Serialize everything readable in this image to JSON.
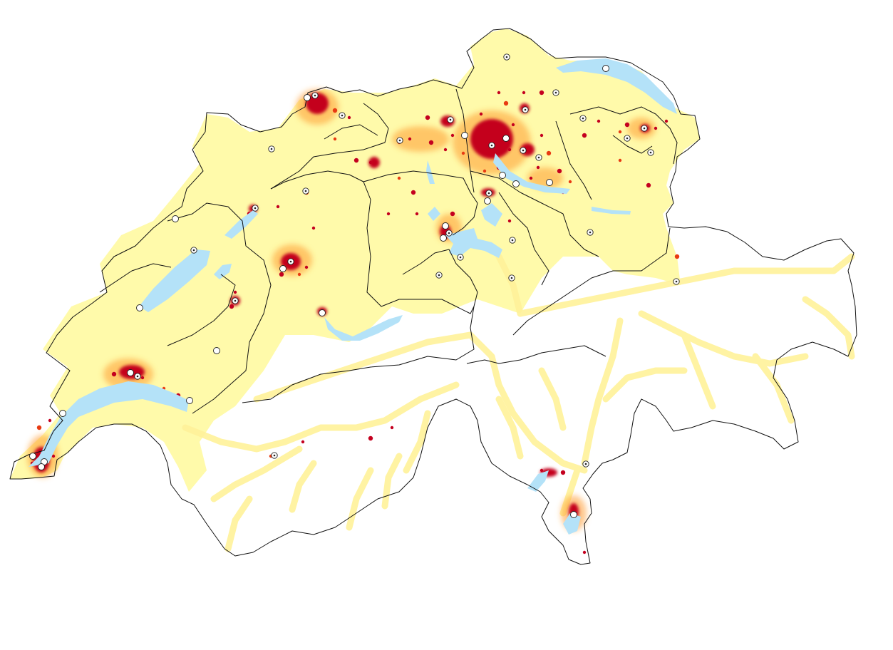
{
  "map": {
    "colors": {
      "background": "#ffffff",
      "settled_area": "#fffaaa",
      "valley_band": "#fff29a",
      "density_medium": "#ff9a2e",
      "density_high": "#e83a12",
      "density_core": "#c4001f",
      "lake": "#b4e2f8",
      "border": "#111111",
      "city_marker_fill": "#ffffff",
      "city_marker_stroke": "#222222"
    },
    "layers": [
      "settled-area-fill",
      "alpine-valley-bands",
      "density-hotspots",
      "lakes",
      "canton-borders",
      "national-border",
      "city-markers"
    ],
    "city_marker_styles": [
      "capital-dotted-circle",
      "town-plain-circle"
    ]
  }
}
